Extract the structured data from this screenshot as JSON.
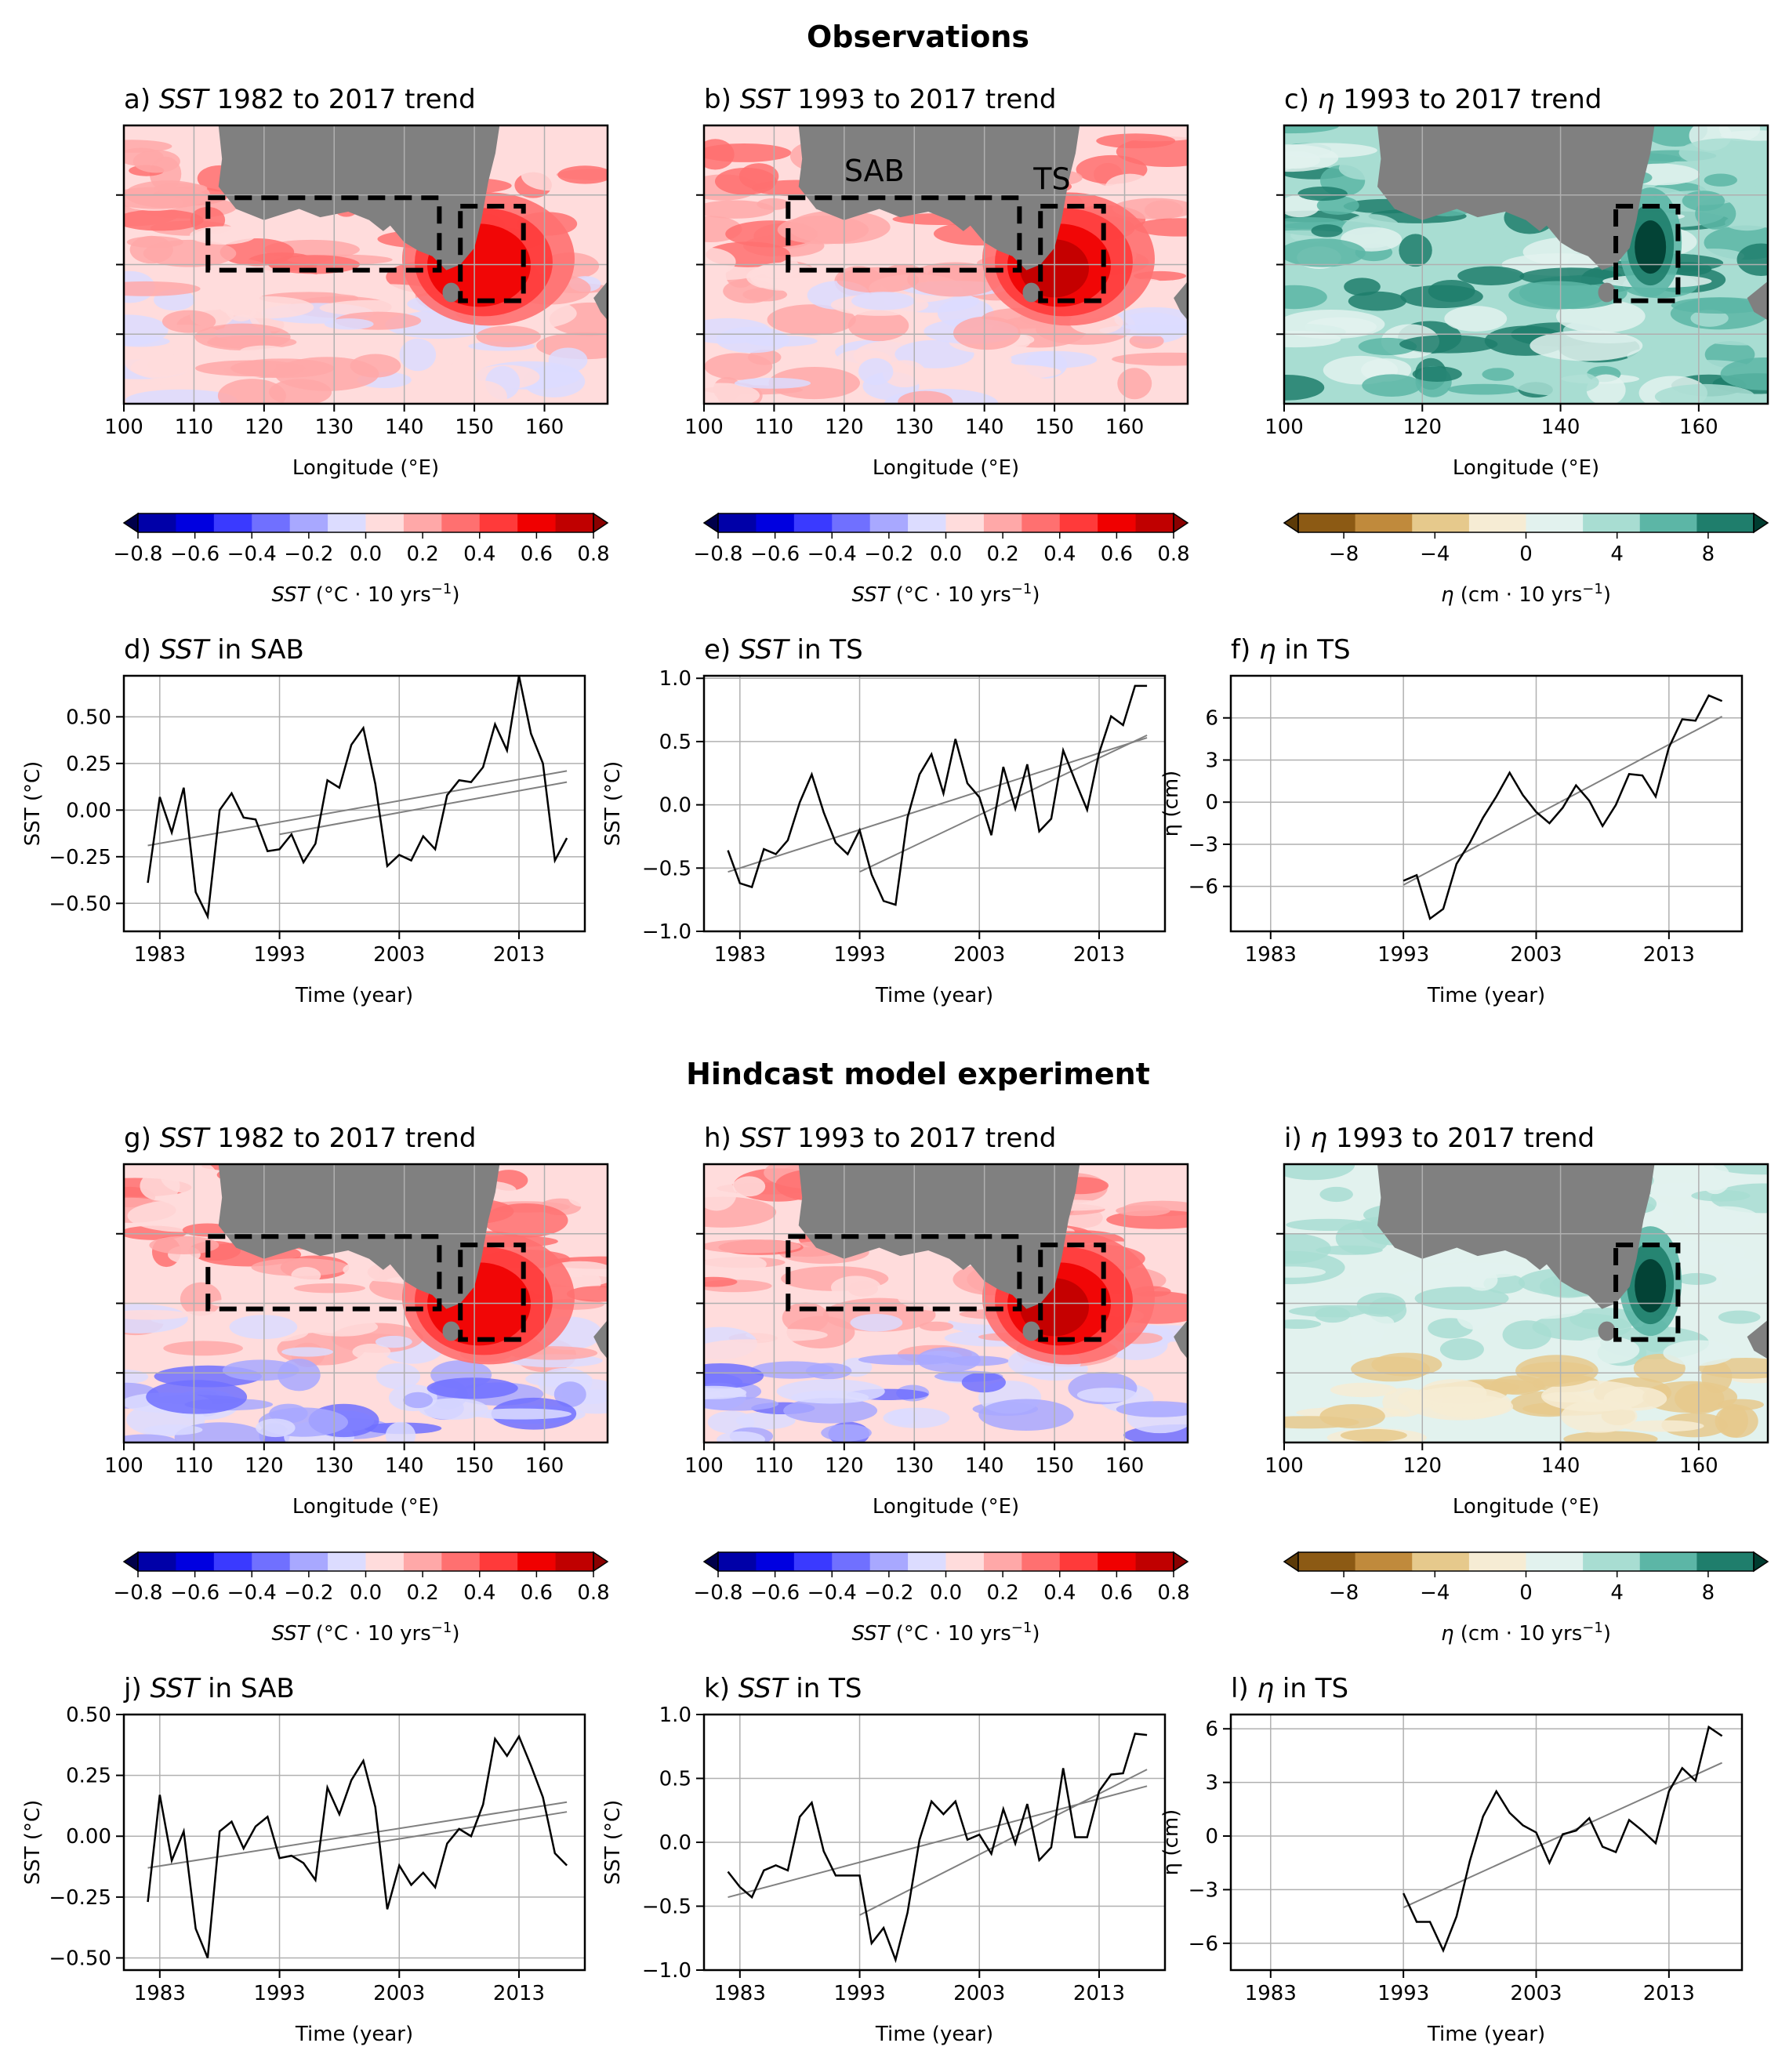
{
  "sections": [
    {
      "title": "Observations"
    },
    {
      "title": "Hindcast model experiment"
    }
  ],
  "colors": {
    "land": "#808080",
    "box": "#000000",
    "sst_scale": [
      "#00004a",
      "#0000a8",
      "#0000e0",
      "#3a3aff",
      "#7070ff",
      "#a8a8ff",
      "#dcdcff",
      "#ffdcdc",
      "#ffa8a8",
      "#ff7070",
      "#ff3a3a",
      "#f00000",
      "#c00000",
      "#8a0000"
    ],
    "eta_scale": [
      "#5c3a08",
      "#8c5a14",
      "#c08a3c",
      "#e6c98c",
      "#f6ecd4",
      "#e2f2ee",
      "#a8ddd2",
      "#5cb6a6",
      "#1f7e6c",
      "#003c30"
    ]
  },
  "maps": [
    {
      "id": "a",
      "section": 0,
      "col": 0,
      "title_pre": "a) ",
      "title_var": "SST",
      "title_post": " 1982 to 2017 trend",
      "var": "sst",
      "xticks": [
        "100",
        "110",
        "120",
        "130",
        "140",
        "150",
        "160"
      ],
      "xlim": [
        100,
        169
      ],
      "xlabel": "Longitude (°E)",
      "boxes": [
        "SAB",
        "TS"
      ]
    },
    {
      "id": "b",
      "section": 0,
      "col": 1,
      "title_pre": "b) ",
      "title_var": "SST",
      "title_post": " 1993 to 2017 trend",
      "var": "sst",
      "xticks": [
        "100",
        "110",
        "120",
        "130",
        "140",
        "150",
        "160"
      ],
      "xlim": [
        100,
        169
      ],
      "xlabel": "Longitude (°E)",
      "boxes": [
        "SAB",
        "TS"
      ],
      "box_labels": {
        "SAB": "SAB",
        "TS": "TS"
      }
    },
    {
      "id": "c",
      "section": 0,
      "col": 2,
      "title_pre": "c) ",
      "title_var": "η",
      "title_post": " 1993 to 2017 trend",
      "var": "eta",
      "xticks": [
        "100",
        "120",
        "140",
        "160"
      ],
      "xlim": [
        100,
        170
      ],
      "xlabel": "Longitude (°E)",
      "boxes": [
        "TS"
      ]
    },
    {
      "id": "g",
      "section": 1,
      "col": 0,
      "title_pre": "g) ",
      "title_var": "SST",
      "title_post": " 1982 to 2017 trend",
      "var": "sst",
      "xticks": [
        "100",
        "110",
        "120",
        "130",
        "140",
        "150",
        "160"
      ],
      "xlim": [
        100,
        169
      ],
      "xlabel": "Longitude (°E)",
      "boxes": [
        "SAB",
        "TS"
      ]
    },
    {
      "id": "h",
      "section": 1,
      "col": 1,
      "title_pre": "h) ",
      "title_var": "SST",
      "title_post": " 1993 to 2017 trend",
      "var": "sst",
      "xticks": [
        "100",
        "110",
        "120",
        "130",
        "140",
        "150",
        "160"
      ],
      "xlim": [
        100,
        169
      ],
      "xlabel": "Longitude (°E)",
      "boxes": [
        "SAB",
        "TS"
      ]
    },
    {
      "id": "i",
      "section": 1,
      "col": 2,
      "title_pre": "i) ",
      "title_var": "η",
      "title_post": " 1993 to 2017 trend",
      "var": "eta",
      "xticks": [
        "100",
        "120",
        "140",
        "160"
      ],
      "xlim": [
        100,
        170
      ],
      "xlabel": "Longitude (°E)",
      "boxes": [
        "TS"
      ]
    }
  ],
  "colorbars": {
    "sst": {
      "ticks": [
        "−0.8",
        "−0.6",
        "−0.4",
        "−0.2",
        "0.0",
        "0.2",
        "0.4",
        "0.6",
        "0.8"
      ],
      "label_var": "SST",
      "label_unit": " (°C · 10 yrs",
      "label_exp": "−1",
      "label_close": ")"
    },
    "eta": {
      "ticks": [
        "−8",
        "−4",
        "0",
        "4",
        "8"
      ],
      "label_var": "η",
      "label_unit": " (cm · 10 yrs",
      "label_exp": "−1",
      "label_close": ")"
    }
  },
  "chart_data": [
    {
      "id": "d",
      "type": "line",
      "title_pre": "d) ",
      "title_var": "SST",
      "title_post": " in SAB",
      "xlabel": "Time (year)",
      "ylabel": "SST (°C)",
      "x": [
        1982,
        1983,
        1984,
        1985,
        1986,
        1987,
        1988,
        1989,
        1990,
        1991,
        1992,
        1993,
        1994,
        1995,
        1996,
        1997,
        1998,
        1999,
        2000,
        2001,
        2002,
        2003,
        2004,
        2005,
        2006,
        2007,
        2008,
        2009,
        2010,
        2011,
        2012,
        2013,
        2014,
        2015,
        2016,
        2017
      ],
      "y": [
        -0.39,
        0.07,
        -0.12,
        0.12,
        -0.44,
        -0.57,
        0.0,
        0.09,
        -0.04,
        -0.05,
        -0.22,
        -0.21,
        -0.13,
        -0.28,
        -0.18,
        0.16,
        0.12,
        0.35,
        0.44,
        0.14,
        -0.3,
        -0.24,
        -0.27,
        -0.14,
        -0.21,
        0.08,
        0.16,
        0.15,
        0.23,
        0.46,
        0.32,
        0.72,
        0.41,
        0.25,
        -0.27,
        -0.15
      ],
      "trends": [
        {
          "x": [
            1982,
            2017
          ],
          "y": [
            -0.19,
            0.21
          ]
        },
        {
          "x": [
            1993,
            2017
          ],
          "y": [
            -0.13,
            0.15
          ]
        }
      ],
      "xlim": [
        1980,
        2018.5
      ],
      "ylim": [
        -0.65,
        0.72
      ],
      "xticks": [
        1983,
        1993,
        2003,
        2013
      ],
      "yticks": [
        -0.5,
        -0.25,
        0.0,
        0.25,
        0.5
      ],
      "ytick_labels": [
        "−0.50",
        "−0.25",
        "0.00",
        "0.25",
        "0.50"
      ],
      "xtick_labels": [
        "1983",
        "1993",
        "2003",
        "2013"
      ]
    },
    {
      "id": "e",
      "type": "line",
      "title_pre": "e) ",
      "title_var": "SST",
      "title_post": " in TS",
      "xlabel": "Time (year)",
      "ylabel": "SST (°C)",
      "x": [
        1982,
        1983,
        1984,
        1985,
        1986,
        1987,
        1988,
        1989,
        1990,
        1991,
        1992,
        1993,
        1994,
        1995,
        1996,
        1997,
        1998,
        1999,
        2000,
        2001,
        2002,
        2003,
        2004,
        2005,
        2006,
        2007,
        2008,
        2009,
        2010,
        2011,
        2012,
        2013,
        2014,
        2015,
        2016,
        2017
      ],
      "y": [
        -0.36,
        -0.62,
        -0.65,
        -0.35,
        -0.39,
        -0.28,
        0.02,
        0.24,
        -0.06,
        -0.3,
        -0.39,
        -0.2,
        -0.55,
        -0.76,
        -0.79,
        -0.1,
        0.24,
        0.4,
        0.09,
        0.52,
        0.17,
        0.06,
        -0.24,
        0.3,
        -0.03,
        0.32,
        -0.21,
        -0.11,
        0.43,
        0.19,
        -0.04,
        0.41,
        0.7,
        0.63,
        0.94,
        0.94
      ],
      "trends": [
        {
          "x": [
            1982,
            2017
          ],
          "y": [
            -0.53,
            0.53
          ]
        },
        {
          "x": [
            1993,
            2017
          ],
          "y": [
            -0.53,
            0.55
          ]
        }
      ],
      "xlim": [
        1980,
        2018.5
      ],
      "ylim": [
        -1.0,
        1.02
      ],
      "xticks": [
        1983,
        1993,
        2003,
        2013
      ],
      "yticks": [
        -1.0,
        -0.5,
        0.0,
        0.5,
        1.0
      ],
      "ytick_labels": [
        "−1.0",
        "−0.5",
        "0.0",
        "0.5",
        "1.0"
      ],
      "xtick_labels": [
        "1983",
        "1993",
        "2003",
        "2013"
      ]
    },
    {
      "id": "f",
      "type": "line",
      "title_pre": "f) ",
      "title_var": "η",
      "title_post": " in TS",
      "xlabel": "Time (year)",
      "ylabel": "η (cm)",
      "x": [
        1993,
        1994,
        1995,
        1996,
        1997,
        1998,
        1999,
        2000,
        2001,
        2002,
        2003,
        2004,
        2005,
        2006,
        2007,
        2008,
        2009,
        2010,
        2011,
        2012,
        2013,
        2014,
        2015,
        2016,
        2017
      ],
      "y": [
        -5.6,
        -5.2,
        -8.3,
        -7.6,
        -4.4,
        -2.9,
        -1.1,
        0.4,
        2.1,
        0.5,
        -0.7,
        -1.5,
        -0.4,
        1.2,
        0.1,
        -1.7,
        -0.2,
        2.0,
        1.9,
        0.4,
        3.9,
        5.9,
        5.8,
        7.6,
        7.2
      ],
      "trends": [
        {
          "x": [
            1993,
            2017
          ],
          "y": [
            -5.9,
            6.1
          ]
        }
      ],
      "xlim": [
        1980,
        2018.5
      ],
      "ylim": [
        -9.2,
        9.0
      ],
      "xticks": [
        1983,
        1993,
        2003,
        2013
      ],
      "yticks": [
        -6,
        -3,
        0,
        3,
        6
      ],
      "ytick_labels": [
        "−6",
        "−3",
        "0",
        "3",
        "6"
      ],
      "xtick_labels": [
        "1983",
        "1993",
        "2003",
        "2013"
      ]
    },
    {
      "id": "j",
      "type": "line",
      "title_pre": "j) ",
      "title_var": "SST",
      "title_post": " in SAB",
      "xlabel": "Time (year)",
      "ylabel": "SST (°C)",
      "x": [
        1982,
        1983,
        1984,
        1985,
        1986,
        1987,
        1988,
        1989,
        1990,
        1991,
        1992,
        1993,
        1994,
        1995,
        1996,
        1997,
        1998,
        1999,
        2000,
        2001,
        2002,
        2003,
        2004,
        2005,
        2006,
        2007,
        2008,
        2009,
        2010,
        2011,
        2012,
        2013,
        2014,
        2015,
        2016,
        2017
      ],
      "y": [
        -0.27,
        0.17,
        -0.1,
        0.02,
        -0.38,
        -0.5,
        0.02,
        0.06,
        -0.05,
        0.04,
        0.08,
        -0.09,
        -0.08,
        -0.11,
        -0.18,
        0.2,
        0.09,
        0.23,
        0.31,
        0.12,
        -0.3,
        -0.12,
        -0.2,
        -0.15,
        -0.21,
        -0.03,
        0.03,
        0.0,
        0.13,
        0.4,
        0.33,
        0.41,
        0.29,
        0.16,
        -0.07,
        -0.12
      ],
      "trends": [
        {
          "x": [
            1982,
            2017
          ],
          "y": [
            -0.13,
            0.14
          ]
        },
        {
          "x": [
            1993,
            2017
          ],
          "y": [
            -0.09,
            0.1
          ]
        }
      ],
      "xlim": [
        1980,
        2018.5
      ],
      "ylim": [
        -0.55,
        0.5
      ],
      "xticks": [
        1983,
        1993,
        2003,
        2013
      ],
      "yticks": [
        -0.5,
        -0.25,
        0.0,
        0.25,
        0.5
      ],
      "ytick_labels": [
        "−0.50",
        "−0.25",
        "0.00",
        "0.25",
        "0.50"
      ],
      "xtick_labels": [
        "1983",
        "1993",
        "2003",
        "2013"
      ]
    },
    {
      "id": "k",
      "type": "line",
      "title_pre": "k) ",
      "title_var": "SST",
      "title_post": " in TS",
      "xlabel": "Time (year)",
      "ylabel": "SST (°C)",
      "x": [
        1982,
        1983,
        1984,
        1985,
        1986,
        1987,
        1988,
        1989,
        1990,
        1991,
        1992,
        1993,
        1994,
        1995,
        1996,
        1997,
        1998,
        1999,
        2000,
        2001,
        2002,
        2003,
        2004,
        2005,
        2006,
        2007,
        2008,
        2009,
        2010,
        2011,
        2012,
        2013,
        2014,
        2015,
        2016,
        2017
      ],
      "y": [
        -0.23,
        -0.35,
        -0.43,
        -0.22,
        -0.18,
        -0.22,
        0.2,
        0.31,
        -0.07,
        -0.26,
        -0.26,
        -0.26,
        -0.79,
        -0.67,
        -0.92,
        -0.55,
        0.02,
        0.32,
        0.22,
        0.32,
        0.02,
        0.06,
        -0.09,
        0.26,
        -0.01,
        0.3,
        -0.14,
        -0.04,
        0.58,
        0.04,
        0.04,
        0.4,
        0.53,
        0.54,
        0.85,
        0.84
      ],
      "trends": [
        {
          "x": [
            1982,
            2017
          ],
          "y": [
            -0.43,
            0.44
          ]
        },
        {
          "x": [
            1993,
            2017
          ],
          "y": [
            -0.57,
            0.57
          ]
        }
      ],
      "xlim": [
        1980,
        2018.5
      ],
      "ylim": [
        -1.0,
        1.0
      ],
      "xticks": [
        1983,
        1993,
        2003,
        2013
      ],
      "yticks": [
        -1.0,
        -0.5,
        0.0,
        0.5,
        1.0
      ],
      "ytick_labels": [
        "−1.0",
        "−0.5",
        "0.0",
        "0.5",
        "1.0"
      ],
      "xtick_labels": [
        "1983",
        "1993",
        "2003",
        "2013"
      ]
    },
    {
      "id": "l",
      "type": "line",
      "title_pre": "l) ",
      "title_var": "η",
      "title_post": " in TS",
      "xlabel": "Time (year)",
      "ylabel": "η (cm)",
      "x": [
        1993,
        1994,
        1995,
        1996,
        1997,
        1998,
        1999,
        2000,
        2001,
        2002,
        2003,
        2004,
        2005,
        2006,
        2007,
        2008,
        2009,
        2010,
        2011,
        2012,
        2013,
        2014,
        2015,
        2016,
        2017
      ],
      "y": [
        -3.2,
        -4.8,
        -4.8,
        -6.4,
        -4.5,
        -1.4,
        1.1,
        2.5,
        1.3,
        0.6,
        0.2,
        -1.5,
        0.1,
        0.3,
        1.0,
        -0.6,
        -0.9,
        0.9,
        0.3,
        -0.4,
        2.5,
        3.8,
        3.1,
        6.1,
        5.6
      ],
      "trends": [
        {
          "x": [
            1993,
            2017
          ],
          "y": [
            -4.0,
            4.1
          ]
        }
      ],
      "xlim": [
        1980,
        2018.5
      ],
      "ylim": [
        -7.5,
        6.8
      ],
      "xticks": [
        1983,
        1993,
        2003,
        2013
      ],
      "yticks": [
        -6,
        -3,
        0,
        3,
        6
      ],
      "ytick_labels": [
        "−6",
        "−3",
        "0",
        "3",
        "6"
      ],
      "xtick_labels": [
        "1983",
        "1993",
        "2003",
        "2013"
      ]
    }
  ]
}
